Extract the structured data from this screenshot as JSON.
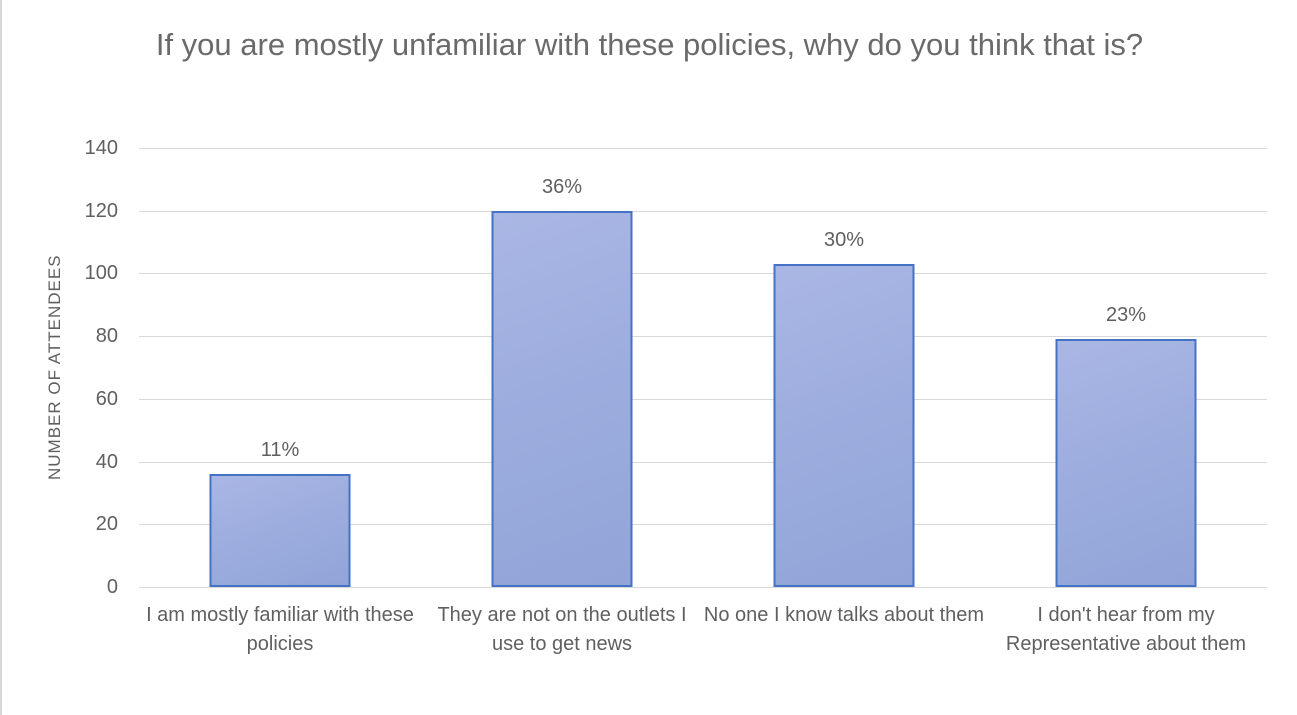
{
  "chart_data": {
    "type": "bar",
    "title": "If you are mostly unfamiliar with these policies, why do you think that is?",
    "xlabel": "",
    "ylabel": "NUMBER OF ATTENDEES",
    "categories": [
      "I am mostly familiar with these policies",
      "They are not on the outlets I use to get news",
      "No one I know talks about them",
      "I don't hear from my Representative about them"
    ],
    "values": [
      36,
      120,
      103,
      79
    ],
    "bar_labels": [
      "11%",
      "36%",
      "30%",
      "23%"
    ],
    "ylim": [
      0,
      140
    ],
    "yticks": [
      0,
      20,
      40,
      60,
      80,
      100,
      120,
      140
    ],
    "grid": true,
    "legend": false,
    "colors": {
      "bar_fill": "#9DADDE",
      "bar_border": "#4472C4",
      "gridline": "#D9D9D9",
      "axis_text": "#606060",
      "title_text": "#6A6A6A",
      "background": "#FFFFFF"
    }
  }
}
